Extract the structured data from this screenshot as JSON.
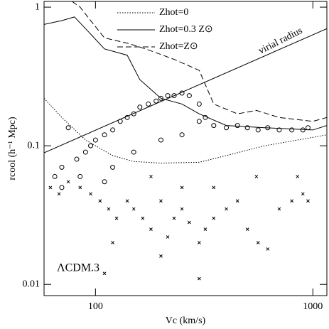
{
  "chart_data": {
    "type": "line",
    "log_x": true,
    "log_y": true,
    "xlabel": "Vc (km/s)",
    "ylabel": "rcool (h⁻¹ Mpc)",
    "xlim": [
      58,
      1160
    ],
    "ylim": [
      0.0083,
      1.1
    ],
    "xticks": [
      100,
      1000
    ],
    "yticks": [
      0.01,
      0.1,
      1
    ],
    "annotations": [
      "virial radius",
      "ΛCDM.3"
    ],
    "virial_radius": {
      "x": [
        58,
        1160
      ],
      "values": [
        0.089,
        0.7
      ]
    },
    "series": [
      {
        "name": "Zhot=0",
        "style": "dotted",
        "color": "#000",
        "x": [
          58,
          70,
          90,
          120,
          150,
          200,
          300,
          400,
          600,
          1000,
          1160
        ],
        "values": [
          0.22,
          0.16,
          0.11,
          0.085,
          0.077,
          0.075,
          0.076,
          0.085,
          0.1,
          0.115,
          0.12
        ]
      },
      {
        "name": "Zhot=0.3 Z⊙",
        "style": "solid",
        "color": "#000",
        "x": [
          58,
          70,
          80,
          90,
          110,
          140,
          160,
          200,
          250,
          300,
          400,
          600,
          1000,
          1160
        ],
        "values": [
          0.75,
          0.8,
          0.85,
          0.7,
          0.5,
          0.45,
          0.3,
          0.22,
          0.2,
          0.17,
          0.14,
          0.135,
          0.13,
          0.14
        ]
      },
      {
        "name": "Zhot=Z⊙",
        "style": "dashed",
        "color": "#000",
        "x": [
          78,
          85,
          95,
          110,
          140,
          170,
          230,
          300,
          350,
          450,
          550,
          700,
          1000,
          1160
        ],
        "values": [
          1.1,
          1.0,
          0.8,
          0.6,
          0.55,
          0.5,
          0.42,
          0.35,
          0.2,
          0.17,
          0.18,
          0.16,
          0.15,
          0.16
        ]
      }
    ],
    "scatter": [
      {
        "marker": "circle",
        "x": [
          65,
          70,
          75,
          82,
          90,
          95,
          100,
          110,
          120,
          130,
          140,
          150,
          160,
          175,
          190,
          200,
          215,
          230,
          250,
          270,
          300,
          320,
          350,
          400,
          450,
          500,
          560,
          620,
          700,
          800,
          900,
          950,
          120,
          150,
          200,
          250,
          300,
          70,
          85,
          110
        ],
        "values": [
          0.06,
          0.07,
          0.135,
          0.08,
          0.09,
          0.1,
          0.11,
          0.12,
          0.13,
          0.15,
          0.16,
          0.17,
          0.19,
          0.2,
          0.21,
          0.22,
          0.23,
          0.23,
          0.24,
          0.23,
          0.2,
          0.16,
          0.14,
          0.135,
          0.14,
          0.135,
          0.13,
          0.135,
          0.13,
          0.13,
          0.13,
          0.135,
          0.07,
          0.09,
          0.11,
          0.12,
          0.15,
          0.05,
          0.06,
          0.055
        ]
      },
      {
        "marker": "cross",
        "x": [
          62,
          68,
          75,
          85,
          95,
          105,
          115,
          125,
          140,
          150,
          165,
          180,
          200,
          215,
          230,
          250,
          270,
          300,
          320,
          350,
          400,
          450,
          500,
          560,
          620,
          700,
          800,
          900,
          950,
          120,
          180,
          250,
          350,
          550,
          850,
          110,
          200,
          300
        ],
        "values": [
          0.05,
          0.045,
          0.055,
          0.05,
          0.045,
          0.04,
          0.035,
          0.03,
          0.04,
          0.035,
          0.03,
          0.025,
          0.04,
          0.022,
          0.03,
          0.035,
          0.028,
          0.011,
          0.025,
          0.03,
          0.035,
          0.04,
          0.025,
          0.02,
          0.018,
          0.035,
          0.04,
          0.045,
          0.04,
          0.02,
          0.06,
          0.05,
          0.05,
          0.06,
          0.06,
          0.012,
          0.016,
          0.02
        ]
      }
    ]
  }
}
